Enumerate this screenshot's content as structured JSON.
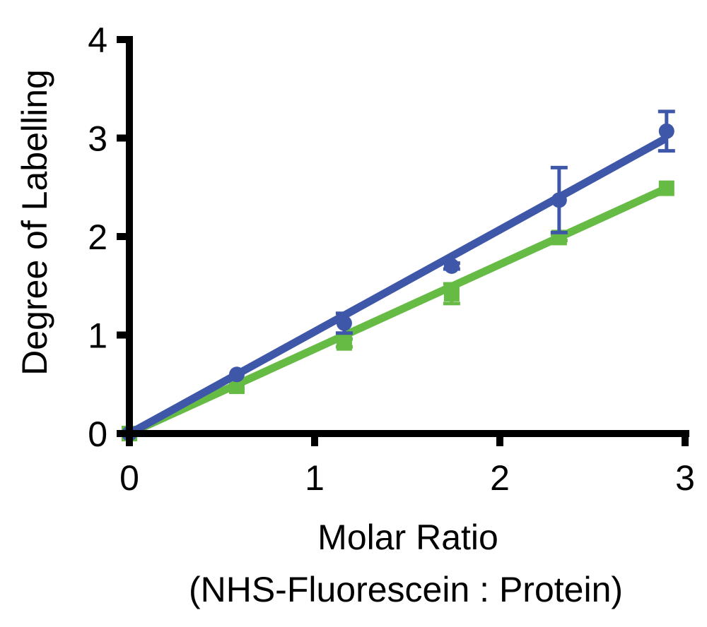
{
  "chart_data": {
    "type": "line",
    "title": "",
    "xlabel": "Molar Ratio",
    "xlabel_sub": "(NHS-Fluorescein : Protein)",
    "ylabel": "Degree of Labelling",
    "xlim": [
      0,
      3
    ],
    "ylim": [
      0,
      4
    ],
    "xticks": [
      "0",
      "1",
      "2",
      "3"
    ],
    "yticks": [
      "0",
      "1",
      "2",
      "3",
      "4"
    ],
    "grid": false,
    "legend": "none",
    "series": [
      {
        "color": "#3F57A8",
        "marker": "circle",
        "x": [
          0,
          0.58,
          1.16,
          1.74,
          2.32,
          2.9
        ],
        "y": [
          0,
          0.6,
          1.12,
          1.7,
          2.37,
          3.07
        ],
        "err": [
          0,
          0.02,
          0.1,
          0.03,
          0.33,
          0.2
        ],
        "fit": [
          [
            0,
            0
          ],
          [
            2.9,
            3.0
          ]
        ]
      },
      {
        "color": "#66BB44",
        "marker": "square",
        "x": [
          0,
          0.58,
          1.16,
          1.74,
          2.32,
          2.9
        ],
        "y": [
          0,
          0.48,
          0.92,
          1.42,
          1.99,
          2.49
        ],
        "err": [
          0,
          0.02,
          0.04,
          0.1,
          0.03,
          0.02
        ],
        "fit": [
          [
            0,
            0
          ],
          [
            2.9,
            2.49
          ]
        ]
      }
    ]
  }
}
